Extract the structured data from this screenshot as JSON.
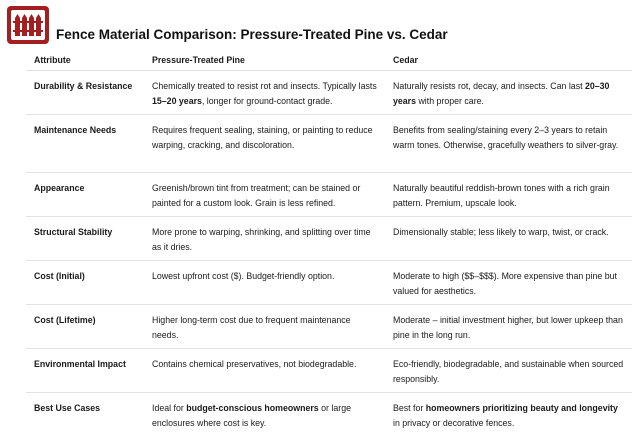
{
  "header": {
    "title": "Fence Material Comparison: Pressure-Treated Pine vs. Cedar"
  },
  "table": {
    "columns": [
      "Attribute",
      "Pressure-Treated Pine",
      "Cedar"
    ],
    "rows": [
      [
        [
          "Durability & Resistance"
        ],
        [
          "Chemically treated to resist rot and insects. Typically lasts ",
          {
            "text": "15–20 years",
            "bold": true
          },
          ", longer for ground-contact grade."
        ],
        [
          "Naturally resists rot, decay, and insects. Can last ",
          {
            "text": "20–30 years",
            "bold": true
          },
          " with proper care."
        ]
      ],
      [
        [
          "Maintenance Needs"
        ],
        [
          "Requires frequent sealing, staining, or painting to reduce warping, cracking, and discoloration."
        ],
        [
          "Benefits from sealing/staining every 2–3 years to retain warm tones. Otherwise, gracefully weathers to silver-gray."
        ]
      ],
      [
        [
          "Appearance"
        ],
        [
          "Greenish/brown tint from treatment; can be stained or painted for a custom look. Grain is less refined."
        ],
        [
          "Naturally beautiful reddish-brown tones with a rich grain pattern. Premium, upscale look."
        ]
      ],
      [
        [
          "Structural Stability"
        ],
        [
          "More prone to warping, shrinking, and splitting over time as it dries."
        ],
        [
          "Dimensionally stable; less likely to warp, twist, or crack."
        ]
      ],
      [
        [
          "Cost (Initial)"
        ],
        [
          "Lowest upfront cost ($). Budget-friendly option."
        ],
        [
          "Moderate to high ($$–$$$). More expensive than pine but valued for aesthetics."
        ]
      ],
      [
        [
          "Cost (Lifetime)"
        ],
        [
          "Higher long-term cost due to frequent maintenance needs."
        ],
        [
          "Moderate – initial investment higher, but lower upkeep than pine in the long run."
        ]
      ],
      [
        [
          "Environmental Impact"
        ],
        [
          "Contains chemical preservatives, not biodegradable."
        ],
        [
          "Eco-friendly, biodegradable, and sustainable when sourced responsibly."
        ]
      ],
      [
        [
          "Best Use Cases"
        ],
        [
          "Ideal for ",
          {
            "text": "budget-conscious homeowners",
            "bold": true
          },
          " or large enclosures where cost is key."
        ],
        [
          "Best for ",
          {
            "text": "homeowners prioritizing beauty and longevity",
            "bold": true
          },
          " in privacy or decorative fences."
        ]
      ]
    ]
  }
}
